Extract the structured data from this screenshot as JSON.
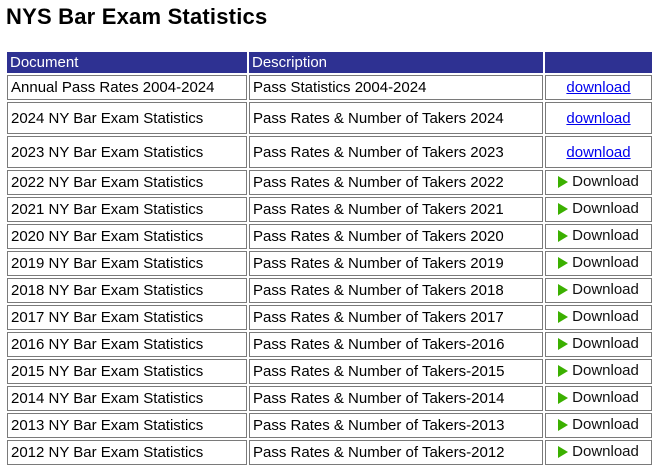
{
  "page": {
    "title": "NYS Bar Exam Statistics"
  },
  "table": {
    "headers": [
      "Document",
      "Description",
      ""
    ],
    "rows": [
      {
        "document": "Annual Pass Rates 2004-2024",
        "description": "Pass Statistics 2004-2024",
        "action": "download",
        "style": "link"
      },
      {
        "document": "2024 NY Bar Exam Statistics",
        "description": "Pass Rates & Number of Takers 2024",
        "action": "download",
        "style": "link"
      },
      {
        "document": "2023 NY Bar Exam Statistics",
        "description": "Pass Rates & Number of Takers 2023",
        "action": "download",
        "style": "link"
      },
      {
        "document": "2022 NY Bar Exam Statistics",
        "description": "Pass Rates & Number of Takers 2022",
        "action": "Download",
        "style": "button"
      },
      {
        "document": "2021 NY Bar Exam Statistics",
        "description": "Pass Rates & Number of Takers 2021",
        "action": "Download",
        "style": "button"
      },
      {
        "document": "2020 NY Bar Exam Statistics",
        "description": "Pass Rates & Number of Takers 2020",
        "action": "Download",
        "style": "button"
      },
      {
        "document": "2019 NY Bar Exam Statistics",
        "description": "Pass Rates & Number of Takers 2019",
        "action": "Download",
        "style": "button"
      },
      {
        "document": "2018 NY Bar Exam Statistics",
        "description": "Pass Rates & Number of Takers 2018",
        "action": "Download",
        "style": "button"
      },
      {
        "document": "2017 NY Bar Exam Statistics",
        "description": "Pass Rates & Number of Takers 2017",
        "action": "Download",
        "style": "button"
      },
      {
        "document": "2016 NY Bar Exam Statistics",
        "description": "Pass Rates & Number of Takers-2016",
        "action": "Download",
        "style": "button"
      },
      {
        "document": "2015 NY Bar Exam Statistics",
        "description": "Pass Rates & Number of Takers-2015",
        "action": "Download",
        "style": "button"
      },
      {
        "document": "2014 NY Bar Exam Statistics",
        "description": "Pass Rates & Number of Takers-2014",
        "action": "Download",
        "style": "button"
      },
      {
        "document": "2013 NY Bar Exam Statistics",
        "description": "Pass Rates & Number of Takers-2013",
        "action": "Download",
        "style": "button"
      },
      {
        "document": "2012 NY Bar Exam Statistics",
        "description": "Pass Rates & Number of Takers-2012",
        "action": "Download",
        "style": "button"
      }
    ]
  },
  "colors": {
    "header_bg": "#2e3192",
    "link": "#0000ee",
    "play_icon": "#3bb000"
  },
  "icons": {
    "download_button": "play-icon"
  }
}
